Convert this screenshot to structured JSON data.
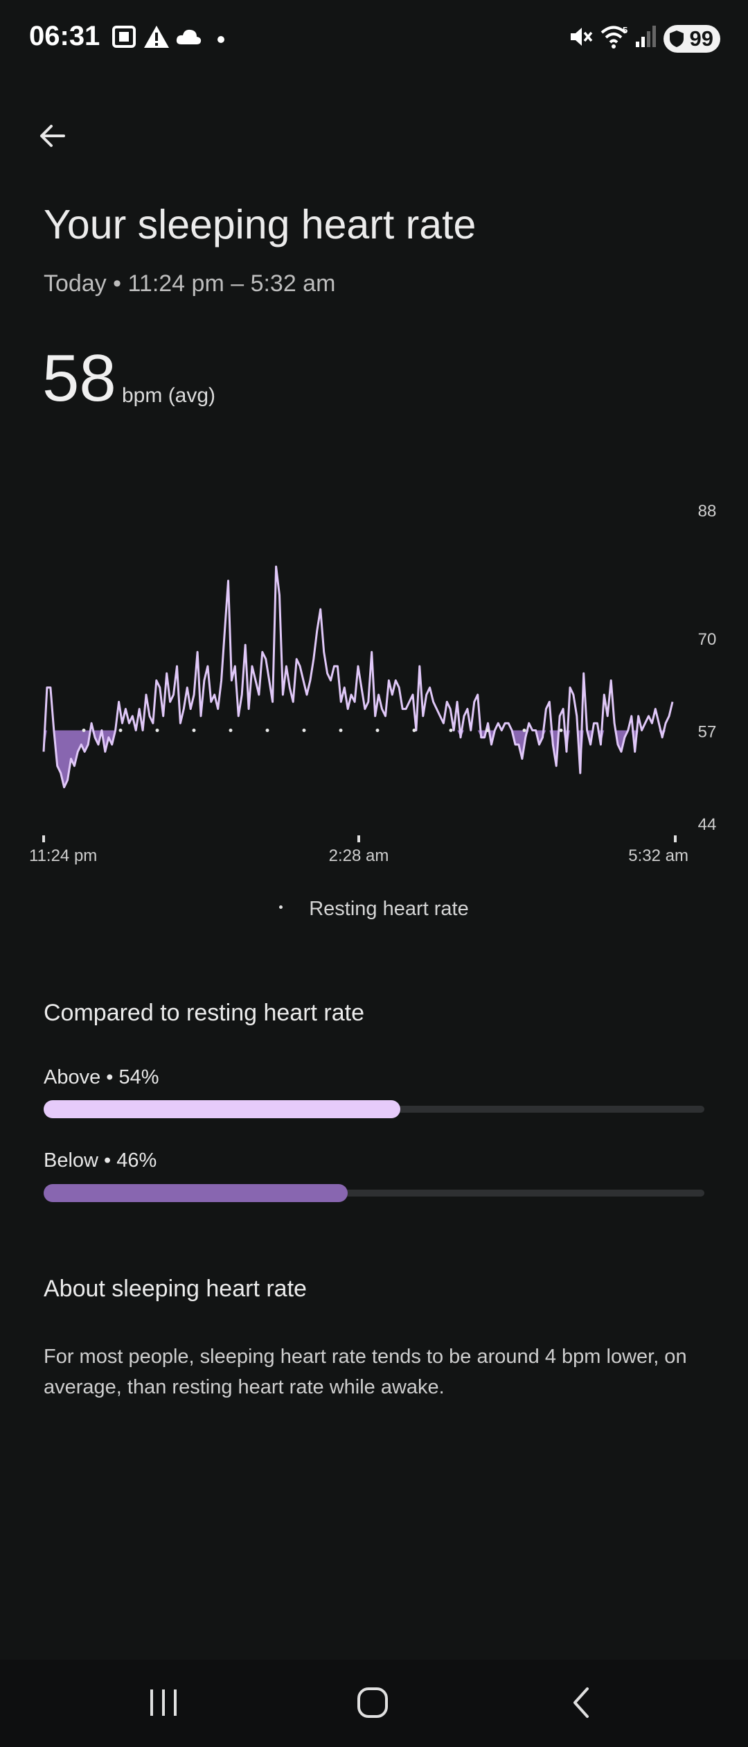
{
  "status_bar": {
    "time": "06:31",
    "battery": "99",
    "icons": [
      "screenshot-icon",
      "warning-icon",
      "cloud-icon",
      "dot-icon",
      "mute-icon",
      "wifi-icon",
      "signal-icon"
    ]
  },
  "header": {
    "back_icon": "back-arrow-icon",
    "title": "Your sleeping heart rate",
    "subtitle": "Today • 11:24 pm – 5:32 am"
  },
  "summary": {
    "value": "58",
    "unit": "bpm (avg)"
  },
  "chart_data": {
    "type": "line",
    "title": "",
    "xlabel": "",
    "ylabel": "bpm",
    "ylim": [
      44,
      88
    ],
    "y_ticks": [
      "88",
      "70",
      "57",
      "44"
    ],
    "x_tick_labels": [
      "11:24 pm",
      "2:28 am",
      "5:32 am"
    ],
    "resting_rate": 57,
    "series": [
      {
        "name": "Heart rate",
        "values": [
          54,
          63,
          63,
          57,
          52,
          51,
          49,
          50,
          53,
          52,
          54,
          55,
          54,
          55,
          58,
          56,
          55,
          57,
          54,
          56,
          55,
          57,
          61,
          58,
          60,
          58,
          59,
          57,
          60,
          57,
          62,
          59,
          58,
          64,
          63,
          59,
          65,
          61,
          62,
          66,
          58,
          60,
          63,
          60,
          62,
          68,
          59,
          64,
          66,
          61,
          62,
          60,
          64,
          71,
          78,
          64,
          66,
          59,
          62,
          69,
          60,
          66,
          64,
          62,
          68,
          67,
          64,
          61,
          80,
          76,
          62,
          66,
          63,
          61,
          67,
          66,
          64,
          62,
          64,
          67,
          71,
          74,
          68,
          65,
          64,
          66,
          66,
          61,
          63,
          60,
          62,
          61,
          66,
          63,
          60,
          61,
          68,
          59,
          62,
          60,
          59,
          64,
          62,
          64,
          63,
          60,
          60,
          61,
          62,
          57,
          66,
          59,
          62,
          63,
          61,
          60,
          59,
          58,
          61,
          60,
          57,
          61,
          56,
          59,
          60,
          57,
          61,
          62,
          56,
          56,
          58,
          55,
          57,
          58,
          57,
          58,
          58,
          57,
          55,
          55,
          53,
          56,
          58,
          57,
          57,
          55,
          56,
          60,
          61,
          55,
          52,
          59,
          60,
          54,
          63,
          62,
          59,
          51,
          65,
          57,
          55,
          58,
          58,
          55,
          62,
          59,
          64,
          58,
          55,
          54,
          56,
          57,
          59,
          54,
          59,
          57,
          58,
          59,
          58,
          60,
          58,
          56,
          58,
          59,
          61
        ],
        "color": "#e0c8f8"
      }
    ],
    "legend": [
      "Resting heart rate"
    ]
  },
  "comparison": {
    "title": "Compared to resting heart rate",
    "above": {
      "label": "Above • 54%",
      "fraction": 0.54,
      "color": "#e6cbfa"
    },
    "below": {
      "label": "Below • 46%",
      "fraction": 0.46,
      "color": "#8866b0"
    }
  },
  "about": {
    "title": "About sleeping heart rate",
    "text": "For most people, sleeping heart rate tends to be around 4 bpm lower, on average, than resting heart rate while awake."
  },
  "navbar": {
    "icons": [
      "recent-apps-icon",
      "home-icon",
      "back-icon"
    ]
  },
  "colors": {
    "background": "#121414",
    "line_above": "#e0c8f8",
    "fill_below": "#8866b0"
  }
}
